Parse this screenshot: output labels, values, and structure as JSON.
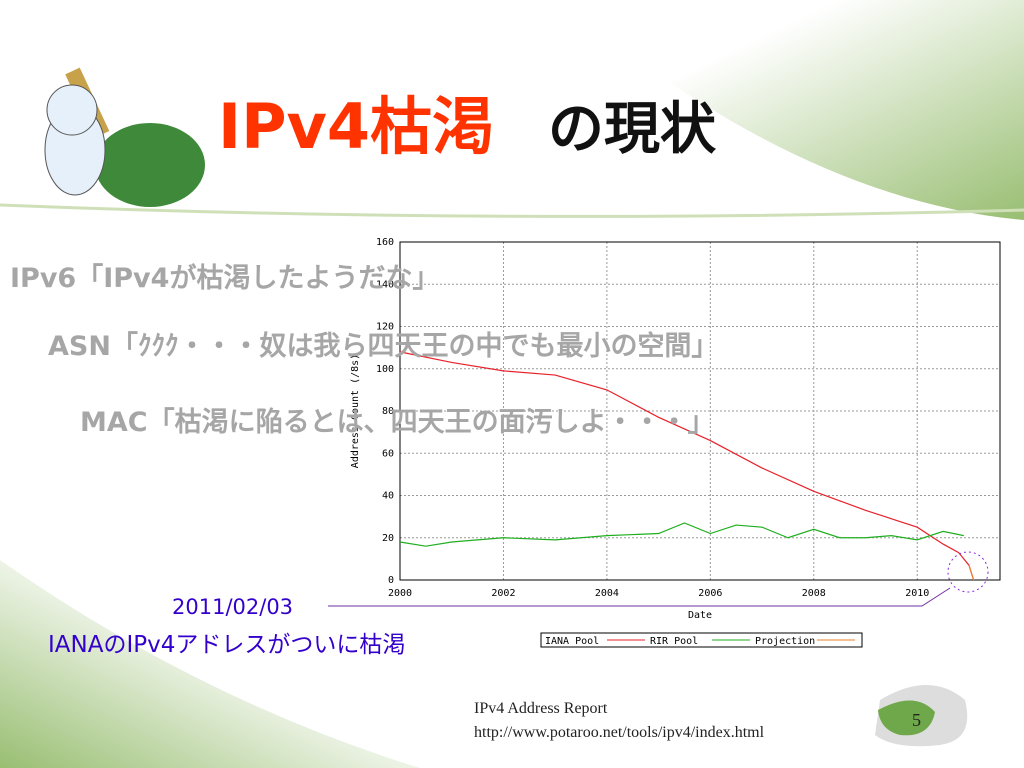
{
  "title": {
    "main": "IPv4枯渇",
    "rest": "の現状"
  },
  "overlay": [
    "IPv6「IPv4が枯渇したようだな」",
    "ASN「ｸｸｸ・・・奴は我ら四天王の中でも最小の空間」",
    "MAC「枯渇に陥るとは、四天王の面汚しよ・・・」"
  ],
  "annotation": {
    "date": "2011/02/03",
    "text": "IANAのIPv4アドレスがついに枯渇"
  },
  "footer": {
    "source": "IPv4 Address Report",
    "url": "http://www.potaroo.net/tools/ipv4/index.html",
    "page": "5"
  },
  "chart_data": {
    "type": "line",
    "xlabel": "Date",
    "ylabel": "Address Count (/8s)",
    "xlim": [
      2000,
      2011.6
    ],
    "xticks": [
      2000,
      2002,
      2004,
      2006,
      2008,
      2010
    ],
    "ylim": [
      0,
      160
    ],
    "yticks": [
      0,
      20,
      40,
      60,
      80,
      100,
      120,
      140,
      160
    ],
    "grid": true,
    "series": [
      {
        "name": "IANA Pool",
        "color": "#e8212a",
        "x": [
          2000,
          2001,
          2002,
          2003,
          2004,
          2005,
          2006,
          2007,
          2008,
          2009,
          2010,
          2010.5,
          2010.8,
          2011.0,
          2011.09
        ],
        "values": [
          108,
          103,
          99,
          97,
          90,
          77,
          66,
          53,
          42,
          33,
          25,
          17,
          13,
          7,
          0
        ]
      },
      {
        "name": "RIR Pool",
        "color": "#1fae1f",
        "x": [
          2000,
          2000.5,
          2001,
          2002,
          2003,
          2004,
          2005,
          2005.5,
          2006,
          2006.5,
          2007,
          2007.5,
          2008,
          2008.5,
          2009,
          2009.5,
          2010,
          2010.5,
          2010.9
        ],
        "values": [
          18,
          16,
          18,
          20,
          19,
          21,
          22,
          27,
          22,
          26,
          25,
          20,
          24,
          20,
          20,
          21,
          19,
          23,
          21
        ]
      },
      {
        "name": "Projection",
        "color": "#e8822a",
        "x": [
          2011.0,
          2011.09
        ],
        "values": [
          7,
          0
        ]
      }
    ]
  }
}
